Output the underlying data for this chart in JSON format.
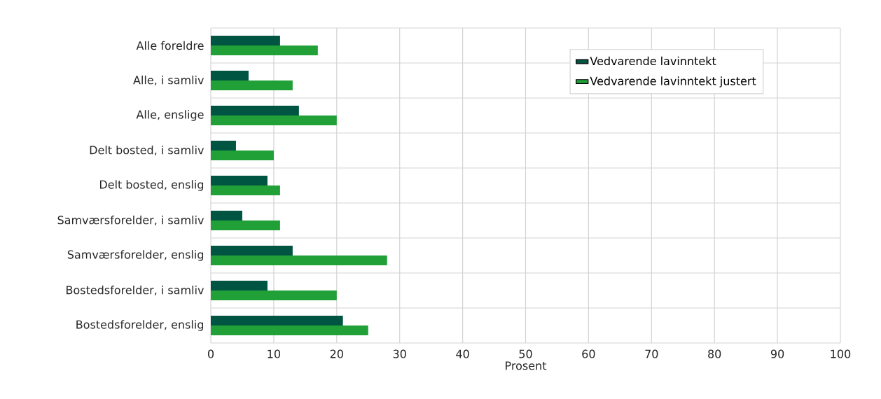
{
  "chart_data": {
    "type": "bar",
    "orientation": "horizontal",
    "xlabel": "Prosent",
    "categories": [
      "Alle foreldre",
      "Alle, i samliv",
      "Alle, enslige",
      "Delt bosted, i samliv",
      "Delt bosted, enslig",
      "Samværsforelder, i samliv",
      "Samværsforelder, enslig",
      "Bostedsforelder, i samliv",
      "Bostedsforelder, enslig"
    ],
    "series": [
      {
        "name": "Vedvarende lavinntekt",
        "color": "#005542",
        "values": [
          11,
          6,
          14,
          4,
          9,
          5,
          13,
          9,
          21
        ]
      },
      {
        "name": "Vedvarende lavinntekt justert",
        "color": "#21a038",
        "values": [
          17,
          13,
          20,
          10,
          11,
          11,
          28,
          20,
          25
        ]
      }
    ],
    "xlim": [
      0,
      100
    ],
    "xticks": [
      0,
      10,
      20,
      30,
      40,
      50,
      60,
      70,
      80,
      90,
      100
    ],
    "grid": true,
    "legend": "top right"
  }
}
